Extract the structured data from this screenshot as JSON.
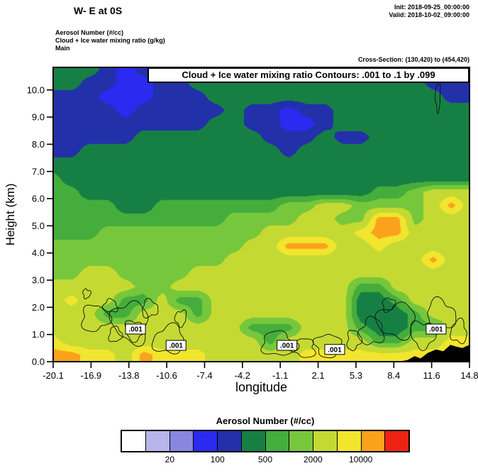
{
  "header": {
    "title": "W- E at 0S",
    "init": "Init: 2018-09-25_00:00:00",
    "valid": "Valid: 2018-10-02_09:00:00",
    "field_lines": [
      "Aerosol Number  (#/cc)",
      "Cloud + Ice water mixing ratio  (g/kg)",
      "Main"
    ],
    "cross_section": "Cross-Section: (130,420) to (454,420)"
  },
  "plot": {
    "inner_title": "Cloud + Ice water mixing ratio Contours: .001 to .1 by .099",
    "xlabel": "longitude",
    "ylabel": "Height (km)",
    "x_ticks": [
      "-20.1",
      "-16.9",
      "-13.8",
      "-10.6",
      "-7.4",
      "-4.2",
      "-1.1",
      "2.1",
      "5.3",
      "8.4",
      "11.6",
      "14.8"
    ],
    "y_ticks": [
      "10.0",
      "9.0",
      "8.0",
      "7.0",
      "6.0",
      "5.0",
      "4.0",
      "3.0",
      "2.0",
      "1.0",
      "0.0"
    ]
  },
  "colorbar": {
    "title": "Aerosol Number  (#/cc)",
    "labels": [
      "20",
      "100",
      "500",
      "2000",
      "10000"
    ]
  },
  "chart_data": {
    "type": "heatmap",
    "title": "Cloud + Ice water mixing ratio Contours: .001 to .1 by .099",
    "subtitle": "Aerosol Number (#/cc) filled, W-E vertical cross-section at 0S",
    "xlabel": "longitude",
    "ylabel": "Height (km)",
    "units": "#/cc",
    "x_min": -20.1,
    "x_max": 14.8,
    "y_min": 0,
    "y_max": 10.83,
    "x_ticks": [
      -20.1,
      -16.9,
      -13.8,
      -10.6,
      -7.4,
      -4.2,
      -1.1,
      2.1,
      5.3,
      8.4,
      11.6,
      14.8
    ],
    "y_ticks": [
      10.0,
      9.0,
      8.0,
      7.0,
      6.0,
      5.0,
      4.0,
      3.0,
      2.0,
      1.0,
      0.0
    ],
    "levels": [
      10,
      20,
      50,
      100,
      200,
      500,
      1000,
      2000,
      5000,
      10000,
      20000
    ],
    "palette": [
      "#ffffff",
      "#b6b6ec",
      "#8787de",
      "#2a2af0",
      "#2230aa",
      "#168044",
      "#44ad3c",
      "#77c73c",
      "#c4da33",
      "#f2e52d",
      "#fba21c",
      "#ee2212"
    ],
    "grid_top": 10.75,
    "grid_step": 0.5,
    "grid": [
      [
        300,
        300,
        300,
        140,
        70,
        140,
        300,
        300,
        300,
        300,
        300,
        300,
        300,
        300,
        300,
        300,
        300,
        300,
        300,
        300,
        300,
        140,
        140,
        300
      ],
      [
        300,
        300,
        140,
        140,
        70,
        70,
        140,
        140,
        300,
        300,
        300,
        300,
        300,
        300,
        300,
        300,
        300,
        300,
        300,
        300,
        300,
        140,
        140,
        140
      ],
      [
        140,
        140,
        140,
        70,
        70,
        70,
        140,
        140,
        140,
        300,
        300,
        300,
        300,
        300,
        300,
        300,
        300,
        300,
        300,
        300,
        300,
        300,
        140,
        140
      ],
      [
        140,
        140,
        140,
        140,
        70,
        140,
        140,
        140,
        140,
        140,
        300,
        140,
        140,
        70,
        140,
        140,
        300,
        300,
        300,
        300,
        300,
        300,
        300,
        300
      ],
      [
        140,
        140,
        140,
        140,
        140,
        140,
        140,
        140,
        140,
        300,
        300,
        140,
        140,
        70,
        70,
        140,
        300,
        300,
        300,
        300,
        300,
        300,
        300,
        300
      ],
      [
        140,
        140,
        140,
        140,
        140,
        300,
        300,
        300,
        300,
        300,
        300,
        300,
        140,
        140,
        140,
        300,
        140,
        140,
        300,
        300,
        300,
        300,
        300,
        300
      ],
      [
        140,
        140,
        300,
        300,
        300,
        300,
        300,
        300,
        300,
        300,
        300,
        300,
        300,
        140,
        300,
        300,
        300,
        300,
        300,
        300,
        300,
        300,
        300,
        300
      ],
      [
        300,
        300,
        300,
        300,
        300,
        300,
        300,
        300,
        300,
        300,
        300,
        300,
        300,
        300,
        300,
        300,
        300,
        300,
        300,
        300,
        300,
        300,
        300,
        300
      ],
      [
        700,
        300,
        300,
        300,
        300,
        300,
        300,
        300,
        300,
        300,
        300,
        300,
        300,
        300,
        300,
        300,
        300,
        300,
        300,
        300,
        300,
        300,
        300,
        300
      ],
      [
        700,
        700,
        300,
        300,
        300,
        300,
        300,
        300,
        300,
        300,
        300,
        300,
        300,
        300,
        300,
        300,
        300,
        300,
        700,
        700,
        1400,
        3000,
        3000,
        3000
      ],
      [
        700,
        700,
        700,
        700,
        300,
        300,
        700,
        700,
        700,
        700,
        700,
        700,
        700,
        1400,
        1400,
        3000,
        3000,
        1400,
        1400,
        1400,
        1400,
        3000,
        14000,
        3000
      ],
      [
        700,
        700,
        700,
        700,
        700,
        700,
        700,
        700,
        700,
        700,
        1400,
        1400,
        1400,
        1400,
        3000,
        3000,
        1400,
        1400,
        14000,
        14000,
        1400,
        3000,
        3000,
        3000
      ],
      [
        700,
        700,
        700,
        1400,
        1400,
        1400,
        1400,
        1400,
        1400,
        1400,
        1400,
        1400,
        3000,
        3000,
        3000,
        3000,
        3000,
        7000,
        14000,
        14000,
        3000,
        3000,
        3000,
        3000
      ],
      [
        1400,
        1400,
        1400,
        1400,
        1400,
        1400,
        1400,
        1400,
        1400,
        1400,
        1400,
        3000,
        3000,
        14000,
        14000,
        14000,
        3000,
        3000,
        7000,
        3000,
        3000,
        3000,
        3000,
        3000
      ],
      [
        1400,
        1400,
        1400,
        1400,
        1400,
        1400,
        1400,
        1400,
        1400,
        1400,
        3000,
        3000,
        3000,
        3000,
        3000,
        3000,
        3000,
        3000,
        3000,
        3000,
        3000,
        14000,
        3000,
        3000
      ],
      [
        1400,
        1400,
        3000,
        3000,
        1400,
        1400,
        1400,
        1400,
        3000,
        3000,
        3000,
        3000,
        3000,
        3000,
        3000,
        3000,
        3000,
        3000,
        3000,
        3000,
        3000,
        3000,
        3000,
        3000
      ],
      [
        3000,
        3000,
        3000,
        3000,
        3000,
        1400,
        1400,
        3000,
        3000,
        3000,
        3000,
        3000,
        3000,
        3000,
        3000,
        3000,
        3000,
        700,
        700,
        3000,
        3000,
        3000,
        3000,
        3000
      ],
      [
        3000,
        7000,
        3000,
        3000,
        700,
        700,
        3000,
        700,
        700,
        3000,
        3000,
        3000,
        3000,
        3000,
        3000,
        3000,
        3000,
        300,
        300,
        700,
        3000,
        3000,
        3000,
        3000
      ],
      [
        3000,
        3000,
        3000,
        700,
        700,
        3000,
        3000,
        3000,
        700,
        3000,
        3000,
        3000,
        3000,
        3000,
        3000,
        3000,
        3000,
        300,
        300,
        300,
        700,
        3000,
        3000,
        3000
      ],
      [
        3000,
        3000,
        3000,
        3000,
        3000,
        3000,
        3000,
        3000,
        3000,
        3000,
        3000,
        700,
        700,
        700,
        3000,
        3000,
        3000,
        700,
        300,
        300,
        700,
        700,
        3000,
        3000
      ],
      [
        7000,
        3000,
        3000,
        3000,
        3000,
        3000,
        3000,
        3000,
        3000,
        3000,
        3000,
        3000,
        700,
        3000,
        3000,
        3000,
        3000,
        3000,
        700,
        700,
        3000,
        3000,
        7000,
        7000
      ],
      [
        14000,
        14000,
        7000,
        7000,
        3000,
        14000,
        7000,
        7000,
        7000,
        3000,
        3000,
        3000,
        3000,
        3000,
        7000,
        7000,
        7000,
        7000,
        7000,
        7000,
        7000,
        7000,
        7000,
        7000
      ]
    ],
    "terrain": [
      [
        8.8,
        0
      ],
      [
        9.6,
        0.06
      ],
      [
        10.2,
        0.2
      ],
      [
        10.7,
        0.12
      ],
      [
        11.3,
        0.32
      ],
      [
        12.0,
        0.45
      ],
      [
        12.6,
        0.38
      ],
      [
        13.2,
        0.62
      ],
      [
        13.7,
        0.55
      ],
      [
        14.2,
        0.5
      ],
      [
        14.8,
        0.62
      ]
    ],
    "cloud_contours": {
      "level": 0.001,
      "blobs": [
        [
          -16.6,
          1.6,
          1.1,
          0.5,
          1
        ],
        [
          -15.3,
          2.05,
          0.55,
          0.25,
          2
        ],
        [
          -13.6,
          1.45,
          1.5,
          0.75,
          3
        ],
        [
          -13.3,
          1.15,
          0.8,
          0.35,
          4
        ],
        [
          -12.0,
          1.95,
          0.7,
          0.3,
          5
        ],
        [
          -10.4,
          0.8,
          1.3,
          0.5,
          6
        ],
        [
          -9.4,
          1.6,
          0.45,
          0.3,
          7
        ],
        [
          -17.3,
          2.5,
          0.3,
          0.18,
          8
        ],
        [
          -1.2,
          0.65,
          1.4,
          0.45,
          9
        ],
        [
          0.9,
          0.5,
          1.0,
          0.33,
          10
        ],
        [
          2.9,
          0.6,
          1.1,
          0.4,
          11
        ],
        [
          5.1,
          0.8,
          0.6,
          0.35,
          12
        ],
        [
          6.6,
          1.1,
          1.0,
          0.5,
          13
        ],
        [
          8.7,
          1.5,
          1.5,
          0.65,
          14
        ],
        [
          10.9,
          1.0,
          1.0,
          0.5,
          15
        ],
        [
          12.4,
          1.7,
          1.2,
          0.55,
          16
        ],
        [
          13.9,
          1.1,
          0.7,
          0.4,
          17
        ],
        [
          12.15,
          9.75,
          0.22,
          0.5,
          18
        ],
        [
          8.0,
          2.1,
          0.5,
          0.25,
          19
        ],
        [
          -14.9,
          1.0,
          0.5,
          0.3,
          20
        ]
      ],
      "labels": [
        {
          "lon": -13.2,
          "km": 1.2,
          "text": ".001"
        },
        {
          "lon": -9.8,
          "km": 0.6,
          "text": ".001"
        },
        {
          "lon": -0.5,
          "km": 0.6,
          "text": ".001"
        },
        {
          "lon": 3.5,
          "km": 0.45,
          "text": ".001"
        },
        {
          "lon": 12.0,
          "km": 1.2,
          "text": ".001"
        }
      ]
    }
  }
}
